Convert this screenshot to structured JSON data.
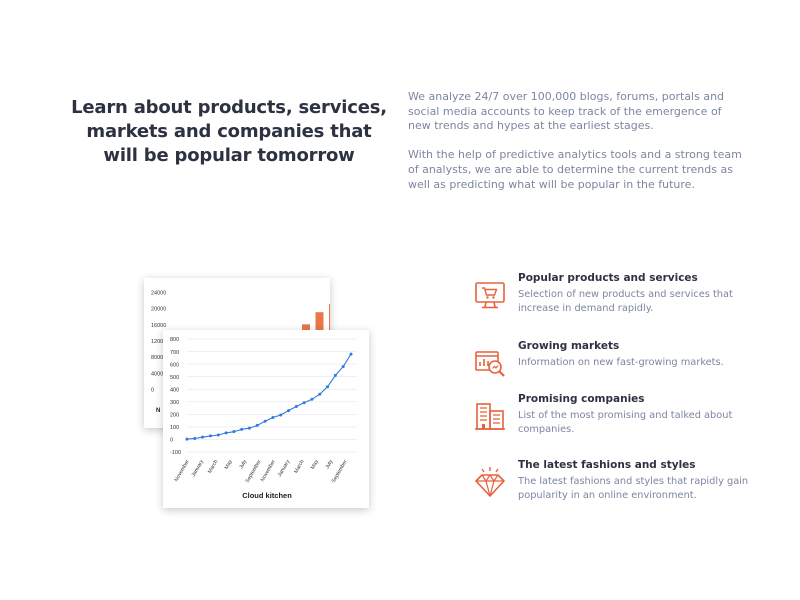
{
  "headline": "Learn about products, services, markets and companies that will be popular tomorrow",
  "intro": {
    "paragraph1": "We analyze 24/7 over 100,000 blogs, forums, portals and social media accounts to keep track of the emergence of new trends and hypes at the earliest stages.",
    "paragraph2": "With the help of predictive analytics tools and a strong team of analysts, we are able to determine the current trends as well as predicting what will be popular in the future."
  },
  "colors": {
    "accent": "#e8603c",
    "line": "#2f7be0",
    "bar": "#e8784a",
    "heading": "#2d3142",
    "body": "#7d86a0"
  },
  "features": [
    {
      "icon": "monitor-cart-icon",
      "title": "Popular products and services",
      "description": "Selection of new products and services that increase in demand rapidly."
    },
    {
      "icon": "market-magnifier-icon",
      "title": "Growing markets",
      "description": "Information on new fast-growing markets."
    },
    {
      "icon": "office-building-icon",
      "title": "Promising companies",
      "description": "List of the most promising and talked about companies."
    },
    {
      "icon": "diamond-icon",
      "title": "The latest fashions and styles",
      "description": "The latest fashions and styles that rapidly gain popularity in an online environment."
    }
  ],
  "chart_data": [
    {
      "type": "bar",
      "title": "",
      "xlabel": "N",
      "ylabel": "",
      "ylim": [
        0,
        24000
      ],
      "y_ticks": [
        "24000",
        "20000",
        "16000",
        "12000",
        "8000",
        "4000",
        "0"
      ],
      "values": [
        12000,
        14000,
        16000,
        19000,
        21000
      ],
      "grid": false
    },
    {
      "type": "line",
      "title": "",
      "xlabel": "Cloud kitchen",
      "ylabel": "",
      "ylim": [
        -100,
        800
      ],
      "y_ticks": [
        "800",
        "700",
        "600",
        "500",
        "400",
        "300",
        "200",
        "100",
        "0",
        "-100"
      ],
      "x_tick_labels": [
        "November",
        "January",
        "March",
        "May",
        "July",
        "September",
        "November",
        "January",
        "March",
        "May",
        "July",
        "September"
      ],
      "values": [
        3,
        8,
        18,
        28,
        35,
        52,
        62,
        80,
        90,
        112,
        145,
        175,
        195,
        230,
        262,
        292,
        320,
        360,
        420,
        510,
        580,
        680
      ],
      "grid": true
    }
  ]
}
